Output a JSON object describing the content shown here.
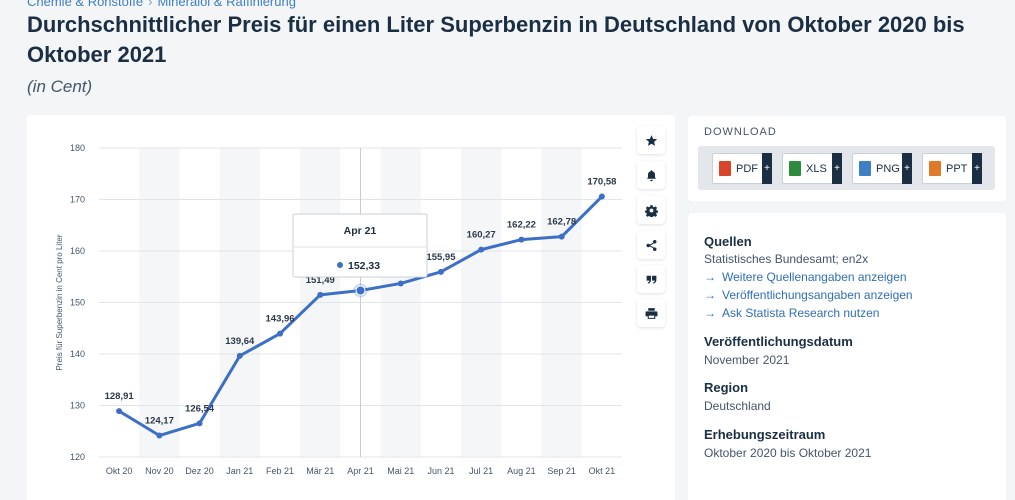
{
  "breadcrumb": {
    "items": [
      "Chemie & Rohstoffe",
      "Mineralöl & Raffinierung"
    ],
    "separator": "›"
  },
  "title": "Durchschnittlicher Preis für einen Liter Superbenzin in Deutschland von Oktober 2020 bis Oktober 2021",
  "subtitle": "(in Cent)",
  "toolbar": {
    "icons": [
      "star-icon",
      "bell-icon",
      "gear-icon",
      "share-icon",
      "quote-icon",
      "print-icon"
    ]
  },
  "download": {
    "title": "DOWNLOAD",
    "buttons": [
      {
        "label": "PDF",
        "color": "#d9452b",
        "plus": "+"
      },
      {
        "label": "XLS",
        "color": "#2e8b3e",
        "plus": "+"
      },
      {
        "label": "PNG",
        "color": "#3f7fc4",
        "plus": "+"
      },
      {
        "label": "PPT",
        "color": "#e07a2b",
        "plus": "+"
      }
    ]
  },
  "info": {
    "sources_heading": "Quellen",
    "sources_text": "Statistisches Bundesamt; en2x",
    "links": [
      "Weitere Quellenangaben anzeigen",
      "Veröffentlichungsangaben anzeigen",
      "Ask Statista Research nutzen"
    ],
    "pubdate_heading": "Veröffentlichungsdatum",
    "pubdate_text": "November 2021",
    "region_heading": "Region",
    "region_text": "Deutschland",
    "period_heading": "Erhebungszeitraum",
    "period_text": "Oktober 2020 bis Oktober 2021"
  },
  "chart_data": {
    "type": "line",
    "categories": [
      "Okt 20",
      "Nov 20",
      "Dez 20",
      "Jan 21",
      "Feb 21",
      "Mär 21",
      "Apr 21",
      "Mai 21",
      "Jun 21",
      "Jul 21",
      "Aug 21",
      "Sep 21",
      "Okt 21"
    ],
    "values": [
      128.91,
      124.17,
      126.54,
      139.64,
      143.96,
      151.49,
      152.33,
      153.7,
      155.95,
      160.27,
      162.22,
      162.78,
      170.58
    ],
    "data_labels": [
      "128,91",
      "124,17",
      "126,54",
      "139,64",
      "143,96",
      "151,49",
      "",
      "",
      "155,95",
      "160,27",
      "162,22",
      "162,78",
      "170,58"
    ],
    "ylabel": "Preis für Superbenzin in Cent pro Liter",
    "ylim": [
      120,
      180
    ],
    "yticks": [
      120,
      130,
      140,
      150,
      160,
      170,
      180
    ],
    "grid": true,
    "line_color": "#3d6fc6",
    "tooltip": {
      "category": "Apr 21",
      "value_label": "152,33"
    }
  }
}
